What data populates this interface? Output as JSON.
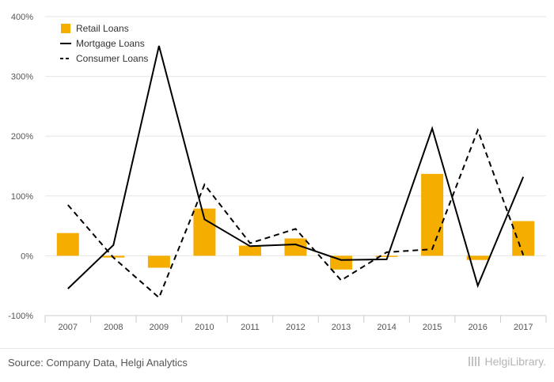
{
  "chart_data": {
    "type": "bar",
    "title": "",
    "xlabel": "",
    "ylabel": "",
    "categories": [
      "2007",
      "2008",
      "2009",
      "2010",
      "2011",
      "2012",
      "2013",
      "2014",
      "2015",
      "2016",
      "2017"
    ],
    "ylim": [
      -100,
      400
    ],
    "yticks": [
      -100,
      0,
      100,
      200,
      300,
      400
    ],
    "ytick_labels": [
      "-100%",
      "0%",
      "100%",
      "200%",
      "300%",
      "400%"
    ],
    "grid": true,
    "legend_position": "top-left",
    "series": [
      {
        "name": "Retail Loans",
        "kind": "bar",
        "color": "#f5ad00",
        "values": [
          38,
          -3,
          -20,
          79,
          17,
          29,
          -23,
          -2,
          137,
          -7,
          58
        ]
      },
      {
        "name": "Mortgage Loans",
        "kind": "line",
        "style": "solid",
        "color": "#000000",
        "values": [
          -55,
          18,
          351,
          61,
          16,
          19,
          -7,
          -6,
          213,
          -50,
          132
        ]
      },
      {
        "name": "Consumer Loans",
        "kind": "line",
        "style": "dashed",
        "color": "#000000",
        "values": [
          85,
          -3,
          -70,
          119,
          21,
          45,
          -41,
          6,
          11,
          210,
          1
        ]
      }
    ]
  },
  "footer": {
    "source": "Source: Company Data, Helgi Analytics",
    "brand": "HelgiLibrary."
  }
}
